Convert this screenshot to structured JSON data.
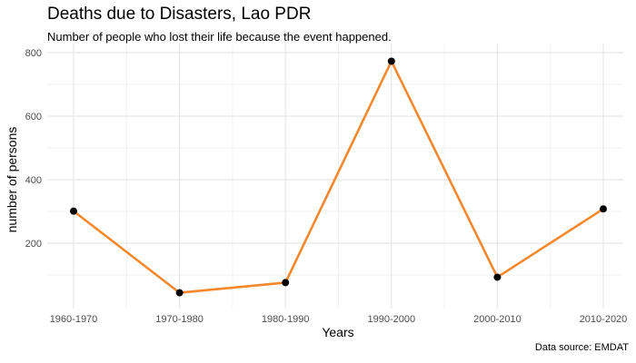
{
  "chart_data": {
    "type": "line",
    "title": "Deaths due to Disasters, Lao PDR",
    "subtitle": "Number of people who lost their life because the event happened.",
    "caption": "Data source: EMDAT",
    "xlabel": "Years",
    "ylabel": "number of persons",
    "categories": [
      "1960-1970",
      "1970-1980",
      "1980-1990",
      "1990-2000",
      "2000-2010",
      "2010-2020"
    ],
    "values": [
      301,
      44,
      76,
      773,
      93,
      308
    ],
    "ylim": [
      0,
      800
    ],
    "yticks": [
      200,
      400,
      600,
      800
    ],
    "ytick_labels": [
      "200",
      "400",
      "600",
      "800"
    ],
    "grid": true,
    "line_color": "#F5882C",
    "point_color": "#000000"
  }
}
